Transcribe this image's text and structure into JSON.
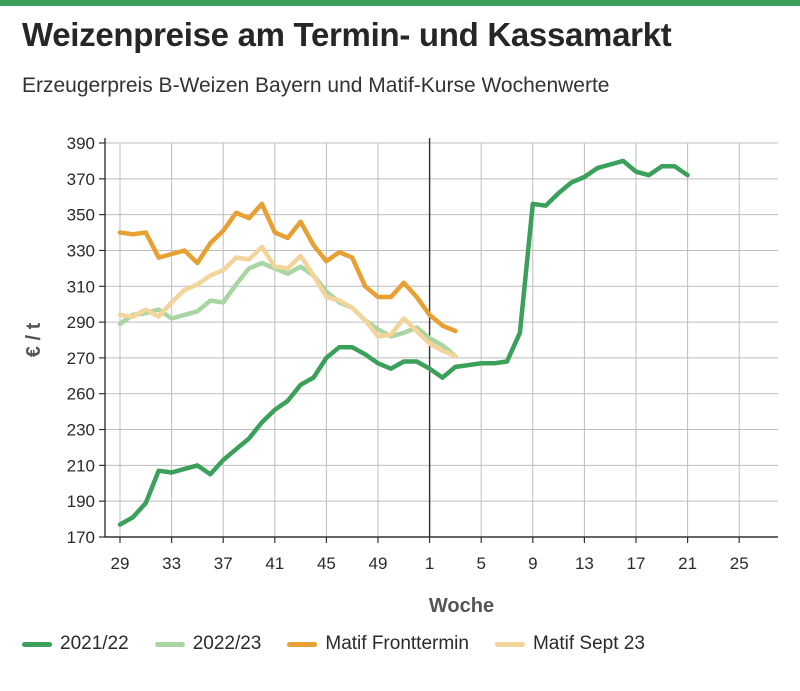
{
  "header": {
    "title": "Weizenpreise am Termin- und Kassamarkt",
    "subtitle": "Erzeugerpreis B-Weizen Bayern und Matif-Kurse Wochenwerte"
  },
  "colors": {
    "brand_bar": "#3aa05a",
    "grid": "#bdbdbd",
    "axis": "#333333"
  },
  "chart_data": {
    "type": "line",
    "xlabel": "Woche",
    "ylabel": "€ / t",
    "x_tick_labels": [
      "29",
      "33",
      "37",
      "41",
      "45",
      "49",
      "1",
      "5",
      "9",
      "13",
      "17",
      "21",
      "25"
    ],
    "y_tick_labels": [
      "390",
      "370",
      "350",
      "330",
      "310",
      "290",
      "270",
      "260",
      "230",
      "210",
      "190",
      "170"
    ],
    "ylim": [
      170,
      390
    ],
    "grid": true,
    "legend_position": "bottom",
    "note": "x values are consecutive week indices; week 29 = 0, year boundary (week 1) = 24",
    "series": [
      {
        "name": "2021/22",
        "color": "#3aa05a",
        "x": [
          0,
          1,
          2,
          3,
          4,
          5,
          6,
          7,
          8,
          9,
          10,
          11,
          12,
          13,
          14,
          15,
          16,
          17,
          18,
          19,
          20,
          21,
          22,
          23,
          24,
          25,
          26,
          27,
          28,
          29,
          30,
          31,
          32,
          33,
          34,
          35,
          36,
          37,
          38,
          39,
          40,
          41,
          42,
          43,
          44,
          45,
          46
        ],
        "values": [
          177,
          181,
          189,
          207,
          206,
          208,
          210,
          205,
          213,
          219,
          225,
          234,
          241,
          246,
          255,
          259,
          270,
          276,
          276,
          272,
          267,
          264,
          268,
          268,
          264,
          259,
          265,
          266,
          267,
          267,
          268,
          284,
          356,
          355,
          362,
          368,
          371,
          376,
          378,
          380,
          374,
          372,
          377,
          377,
          372,
          null,
          null
        ]
      },
      {
        "name": "2022/23",
        "color": "#a8d5a2",
        "x": [
          0,
          1,
          2,
          3,
          4,
          5,
          6,
          7,
          8,
          9,
          10,
          11,
          12,
          13,
          14,
          15,
          16,
          17,
          18,
          19,
          20,
          21,
          22,
          23,
          24,
          25,
          26
        ],
        "values": [
          289,
          294,
          295,
          297,
          292,
          294,
          296,
          302,
          301,
          311,
          320,
          323,
          320,
          317,
          321,
          316,
          307,
          301,
          298,
          291,
          286,
          282,
          284,
          287,
          281,
          277,
          271
        ]
      },
      {
        "name": "Matif Fronttermin",
        "color": "#e8a032",
        "x": [
          0,
          1,
          2,
          3,
          4,
          5,
          6,
          7,
          8,
          9,
          10,
          11,
          12,
          13,
          14,
          15,
          16,
          17,
          18,
          19,
          20,
          21,
          22,
          23,
          24,
          25,
          26,
          27,
          28
        ],
        "values": [
          340,
          339,
          340,
          326,
          328,
          330,
          323,
          334,
          341,
          351,
          348,
          356,
          340,
          337,
          346,
          333,
          324,
          329,
          326,
          310,
          304,
          304,
          312,
          304,
          294,
          288,
          285,
          null,
          null
        ]
      },
      {
        "name": "Matif Sept 23",
        "color": "#f3d49a",
        "x": [
          0,
          1,
          2,
          3,
          4,
          5,
          6,
          7,
          8,
          9,
          10,
          11,
          12,
          13,
          14,
          15,
          16,
          17,
          18,
          19,
          20,
          21,
          22,
          23,
          24,
          25,
          26
        ],
        "values": [
          294,
          293,
          297,
          293,
          301,
          308,
          311,
          316,
          319,
          326,
          325,
          332,
          321,
          320,
          327,
          316,
          304,
          302,
          298,
          291,
          282,
          283,
          292,
          285,
          278,
          274,
          271
        ]
      }
    ]
  }
}
